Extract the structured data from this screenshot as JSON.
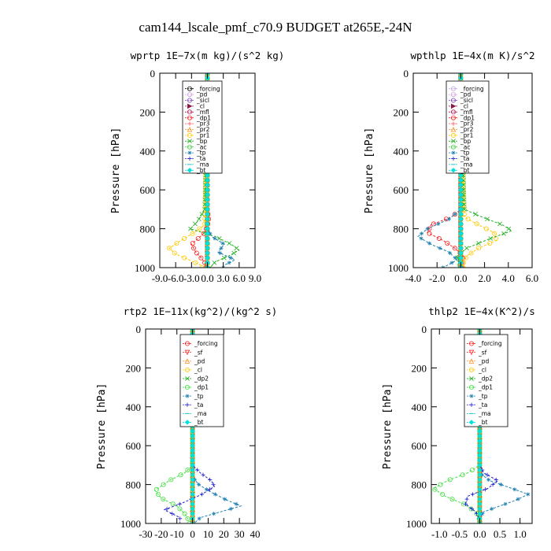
{
  "title": "cam144_lscale_pmf_c70.9  BUDGET at265E,-24N",
  "chart_data": [
    {
      "type": "line",
      "title": "wprtp   1E−7x(m kg)/(s^2 kg)",
      "ylabel": "Pressure  [hPa]",
      "xlabel": "",
      "xlim": [
        -9,
        9
      ],
      "ylim": [
        1000,
        0
      ],
      "xticks": [
        -9,
        -6,
        -3,
        0,
        3,
        6,
        9
      ],
      "xticklabels": [
        "-9.0",
        "-6.0",
        "-3.0",
        "0.0",
        "3.0",
        "6.0",
        "9.0"
      ],
      "yticks": [
        0,
        200,
        400,
        600,
        800,
        1000
      ],
      "yticklabels": [
        "0",
        "200",
        "400",
        "600",
        "800",
        "1000"
      ],
      "legend": [
        "_forcing",
        "_pd",
        "_sicl",
        "_cl",
        "_mfl",
        "_dp1",
        "_pr3",
        "_pr2",
        "_pr1",
        "_bp",
        "_ac",
        "_tp",
        "_ta",
        "_ma",
        "_bt"
      ],
      "series": [
        {
          "name": "_forcing",
          "color": "#000000",
          "marker": "o",
          "pressure": [
            0,
            1000
          ],
          "values": [
            0,
            0
          ]
        },
        {
          "name": "_pd",
          "color": "#c8a0e0",
          "marker": "o",
          "pressure": [
            0,
            1000
          ],
          "values": [
            0,
            0
          ]
        },
        {
          "name": "_sicl",
          "color": "#7a40c0",
          "marker": "o",
          "pressure": [
            0,
            1000
          ],
          "values": [
            0,
            0
          ]
        },
        {
          "name": "_cl",
          "color": "#8a1a4a",
          "marker": ">",
          "pressure": [
            0,
            1000
          ],
          "values": [
            0,
            0
          ]
        },
        {
          "name": "_mfl",
          "color": "#c0185a",
          "marker": "o",
          "pressure": [
            0,
            1000
          ],
          "values": [
            0,
            0
          ]
        },
        {
          "name": "_dp1",
          "color": "#ff2020",
          "marker": "o",
          "pressure": [
            0,
            700,
            760,
            820,
            880,
            920,
            950,
            975,
            1000
          ],
          "values": [
            0,
            0,
            0.3,
            -0.5,
            -3.0,
            -2.2,
            -1.2,
            -0.5,
            -0.3
          ]
        },
        {
          "name": "_pr3",
          "color": "#ff5050",
          "marker": "+",
          "pressure": [
            0,
            1000
          ],
          "values": [
            0,
            0
          ]
        },
        {
          "name": "_pr2",
          "color": "#ff9020",
          "marker": "^",
          "pressure": [
            0,
            1000
          ],
          "values": [
            0,
            0
          ]
        },
        {
          "name": "_pr1",
          "color": "#ffc800",
          "marker": "o",
          "pressure": [
            0,
            780,
            820,
            860,
            900,
            930,
            960,
            990
          ],
          "values": [
            0,
            -0.5,
            -2.5,
            -5.0,
            -7.2,
            -6.0,
            -3.5,
            -1.0
          ]
        },
        {
          "name": "_bp",
          "color": "#20b020",
          "marker": "x",
          "pressure": [
            0,
            700,
            760,
            800,
            840,
            880,
            910,
            940,
            970,
            1000
          ],
          "values": [
            0,
            -0.5,
            -1.8,
            -3.2,
            1.5,
            4.5,
            6.0,
            4.0,
            1.5,
            0.5
          ]
        },
        {
          "name": "_ac",
          "color": "#40d040",
          "marker": "o",
          "pressure": [
            0,
            1000
          ],
          "values": [
            0,
            0
          ]
        },
        {
          "name": "_tp",
          "color": "#2080b0",
          "marker": "*",
          "pressure": [
            0,
            800,
            840,
            880,
            920,
            960,
            990
          ],
          "values": [
            0,
            0,
            0.8,
            3.2,
            2.0,
            5.2,
            3.0
          ]
        },
        {
          "name": "_ta",
          "color": "#2020d0",
          "marker": "+",
          "pressure": [
            0,
            1000
          ],
          "values": [
            0,
            0
          ]
        },
        {
          "name": "_ma",
          "color": "#20c0c0",
          "marker": "-",
          "pressure": [
            0,
            1000
          ],
          "values": [
            0,
            0
          ]
        },
        {
          "name": "_bt",
          "color": "#00e0e0",
          "marker": "D",
          "pressure": [
            0,
            1000
          ],
          "values": [
            0,
            0
          ]
        }
      ]
    },
    {
      "type": "line",
      "title": "wpthlp   1E−4x(m K)/s^2",
      "ylabel": "Pressure  [hPa]",
      "xlabel": "",
      "xlim": [
        -4,
        6
      ],
      "ylim": [
        1000,
        0
      ],
      "xticks": [
        -4,
        -2,
        0,
        2,
        4,
        6
      ],
      "xticklabels": [
        "-4.0",
        "-2.0",
        "0.0",
        "2.0",
        "4.0",
        "6.0"
      ],
      "yticks": [
        0,
        200,
        400,
        600,
        800,
        1000
      ],
      "yticklabels": [
        "0",
        "200",
        "400",
        "600",
        "800",
        "1000"
      ],
      "legend": [
        "_forcing",
        "_pd",
        "_sicl",
        "_cl",
        "_mfl",
        "_dp1",
        "_pr3",
        "_pr2",
        "_pr1",
        "_bp",
        "_ac",
        "_tp",
        "_ta",
        "_ma",
        "_bt"
      ],
      "series": [
        {
          "name": "_forcing",
          "color": "#c8a0e0",
          "marker": "o",
          "pressure": [
            0,
            1000
          ],
          "values": [
            0,
            0
          ]
        },
        {
          "name": "_pd",
          "color": "#c8a0e0",
          "marker": "o",
          "pressure": [
            0,
            1000
          ],
          "values": [
            0,
            0
          ]
        },
        {
          "name": "_sicl",
          "color": "#7a40c0",
          "marker": "o",
          "pressure": [
            0,
            1000
          ],
          "values": [
            0,
            0
          ]
        },
        {
          "name": "_cl",
          "color": "#8a1a4a",
          "marker": ">",
          "pressure": [
            0,
            1000
          ],
          "values": [
            0,
            0
          ]
        },
        {
          "name": "_mfl",
          "color": "#c0185a",
          "marker": "o",
          "pressure": [
            0,
            1000
          ],
          "values": [
            0,
            0
          ]
        },
        {
          "name": "_dp1",
          "color": "#ff2020",
          "marker": "o",
          "pressure": [
            0,
            700,
            740,
            780,
            820,
            860,
            900,
            940,
            980
          ],
          "values": [
            0,
            0,
            -0.8,
            -2.5,
            -2.8,
            -1.5,
            -0.5,
            0.2,
            0.1
          ]
        },
        {
          "name": "_pr3",
          "color": "#ff5050",
          "marker": "+",
          "pressure": [
            0,
            1000
          ],
          "values": [
            0,
            0
          ]
        },
        {
          "name": "_pr2",
          "color": "#ff9020",
          "marker": "^",
          "pressure": [
            0,
            1000
          ],
          "values": [
            0,
            0
          ]
        },
        {
          "name": "_pr1",
          "color": "#ffc800",
          "marker": "o",
          "pressure": [
            0,
            740,
            780,
            820,
            860,
            900,
            940,
            980
          ],
          "values": [
            0,
            0.3,
            1.5,
            2.8,
            3.0,
            1.5,
            0.5,
            0.2
          ]
        },
        {
          "name": "_bp",
          "color": "#20b020",
          "marker": "x",
          "pressure": [
            0,
            700,
            740,
            780,
            810,
            850,
            900,
            940,
            980
          ],
          "values": [
            0,
            0.3,
            1.8,
            3.5,
            4.3,
            2.5,
            0.5,
            -0.3,
            -0.1
          ]
        },
        {
          "name": "_ac",
          "color": "#40d040",
          "marker": "o",
          "pressure": [
            0,
            1000
          ],
          "values": [
            0,
            0
          ]
        },
        {
          "name": "_tp",
          "color": "#2080b0",
          "marker": "*",
          "pressure": [
            0,
            700,
            750,
            800,
            840,
            880,
            920,
            960,
            1000
          ],
          "values": [
            0,
            0,
            -1.0,
            -2.8,
            -3.6,
            -2.5,
            -1.0,
            -0.3,
            -1.5
          ]
        },
        {
          "name": "_ta",
          "color": "#2020d0",
          "marker": "+",
          "pressure": [
            0,
            1000
          ],
          "values": [
            0,
            0
          ]
        },
        {
          "name": "_ma",
          "color": "#20c0c0",
          "marker": "-",
          "pressure": [
            0,
            1000
          ],
          "values": [
            0,
            0
          ]
        },
        {
          "name": "_bt",
          "color": "#00e0e0",
          "marker": "D",
          "pressure": [
            0,
            1000
          ],
          "values": [
            0,
            0
          ]
        }
      ]
    },
    {
      "type": "line",
      "title": "rtp2   1E−11x(kg^2)/(kg^2 s)",
      "ylabel": "Pressure  [hPa]",
      "xlabel": "",
      "xlim": [
        -30,
        40
      ],
      "ylim": [
        1000,
        0
      ],
      "xticks": [
        -30,
        -20,
        -10,
        0,
        10,
        20,
        30,
        40
      ],
      "xticklabels": [
        "-30",
        "-20",
        "-10",
        "0",
        "10",
        "20",
        "30",
        "40"
      ],
      "yticks": [
        0,
        200,
        400,
        600,
        800,
        1000
      ],
      "yticklabels": [
        "0",
        "200",
        "400",
        "600",
        "800",
        "1000"
      ],
      "legend": [
        "_forcing",
        "_sf",
        "_pd",
        "_cl",
        "_dp2",
        "_dp1",
        "_tp",
        "_ta",
        "_ma",
        "_bt"
      ],
      "series": [
        {
          "name": "_forcing",
          "color": "#ff2020",
          "marker": "o",
          "pressure": [
            0,
            1000
          ],
          "values": [
            0,
            0
          ]
        },
        {
          "name": "_sf",
          "color": "#ff2020",
          "marker": "v",
          "pressure": [
            0,
            1000
          ],
          "values": [
            0,
            0
          ]
        },
        {
          "name": "_pd",
          "color": "#ff9020",
          "marker": "^",
          "pressure": [
            0,
            1000
          ],
          "values": [
            0,
            0
          ]
        },
        {
          "name": "_cl",
          "color": "#ffc800",
          "marker": "o",
          "pressure": [
            0,
            1000
          ],
          "values": [
            0,
            0
          ]
        },
        {
          "name": "_dp2",
          "color": "#20b020",
          "marker": "x",
          "pressure": [
            0,
            1000
          ],
          "values": [
            0,
            0
          ]
        },
        {
          "name": "_dp1",
          "color": "#40e040",
          "marker": "o",
          "pressure": [
            0,
            700,
            740,
            780,
            830,
            870,
            910,
            950,
            990
          ],
          "values": [
            0,
            0,
            -5,
            -15,
            -24,
            -20,
            -10,
            -5,
            -2
          ]
        },
        {
          "name": "_tp",
          "color": "#2080b0",
          "marker": "*",
          "pressure": [
            0,
            760,
            800,
            840,
            880,
            910,
            940,
            970,
            1000
          ],
          "values": [
            0,
            0,
            4,
            12,
            22,
            31,
            18,
            5,
            1
          ]
        },
        {
          "name": "_ta",
          "color": "#2020d0",
          "marker": "+",
          "pressure": [
            0,
            700,
            740,
            780,
            810,
            850,
            890,
            930,
            970
          ],
          "values": [
            0,
            0,
            5,
            12,
            14,
            6,
            -5,
            -18,
            -8
          ]
        },
        {
          "name": "_ma",
          "color": "#20c0c0",
          "marker": "-",
          "pressure": [
            0,
            1000
          ],
          "values": [
            0,
            0
          ]
        },
        {
          "name": "_bt",
          "color": "#00e0e0",
          "marker": "D",
          "pressure": [
            0,
            1000
          ],
          "values": [
            0,
            0
          ]
        }
      ]
    },
    {
      "type": "line",
      "title": "thlp2   1E−4x(K^2)/s",
      "ylabel": "Pressure  [hPa]",
      "xlabel": "",
      "xlim": [
        -1.2,
        1.3
      ],
      "ylim": [
        1000,
        0
      ],
      "xticks": [
        -1.0,
        -0.5,
        0.0,
        0.5,
        1.0
      ],
      "xticklabels": [
        "-1.0",
        "-0.5",
        "0.0",
        "0.5",
        "1.0"
      ],
      "yticks": [
        0,
        200,
        400,
        600,
        800,
        1000
      ],
      "yticklabels": [
        "0",
        "200",
        "400",
        "600",
        "800",
        "1000"
      ],
      "legend": [
        "_forcing",
        "_sf",
        "_pd",
        "_cl",
        "_dp2",
        "_dp1",
        "_tp",
        "_ta",
        "_ma",
        "_bt"
      ],
      "series": [
        {
          "name": "_forcing",
          "color": "#ff2020",
          "marker": "o",
          "pressure": [
            0,
            1000
          ],
          "values": [
            0,
            0
          ]
        },
        {
          "name": "_sf",
          "color": "#ff2020",
          "marker": "v",
          "pressure": [
            0,
            1000
          ],
          "values": [
            0,
            0
          ]
        },
        {
          "name": "_pd",
          "color": "#ff9020",
          "marker": "^",
          "pressure": [
            0,
            1000
          ],
          "values": [
            0,
            0
          ]
        },
        {
          "name": "_cl",
          "color": "#ffc800",
          "marker": "o",
          "pressure": [
            0,
            1000
          ],
          "values": [
            0,
            0
          ]
        },
        {
          "name": "_dp2",
          "color": "#20b020",
          "marker": "x",
          "pressure": [
            0,
            1000
          ],
          "values": [
            0,
            0
          ]
        },
        {
          "name": "_dp1",
          "color": "#40e040",
          "marker": "o",
          "pressure": [
            0,
            700,
            740,
            780,
            820,
            860,
            900,
            940,
            980
          ],
          "values": [
            0,
            0,
            -0.3,
            -0.8,
            -1.15,
            -0.85,
            -0.4,
            -0.1,
            0
          ]
        },
        {
          "name": "_tp",
          "color": "#2080b0",
          "marker": "*",
          "pressure": [
            0,
            740,
            780,
            820,
            850,
            880,
            910,
            940,
            970
          ],
          "values": [
            0,
            0,
            0.25,
            0.8,
            1.2,
            0.9,
            0.5,
            0.1,
            0
          ]
        },
        {
          "name": "_ta",
          "color": "#2020d0",
          "marker": "+",
          "pressure": [
            0,
            700,
            740,
            780,
            820,
            860,
            900,
            940,
            980
          ],
          "values": [
            0,
            0,
            0.1,
            0.45,
            0.2,
            -0.3,
            -0.35,
            -0.1,
            0
          ]
        },
        {
          "name": "_ma",
          "color": "#20c0c0",
          "marker": "-",
          "pressure": [
            0,
            1000
          ],
          "values": [
            0,
            0
          ]
        },
        {
          "name": "_bt",
          "color": "#00e0e0",
          "marker": "D",
          "pressure": [
            0,
            1000
          ],
          "values": [
            0,
            0
          ]
        }
      ]
    }
  ]
}
